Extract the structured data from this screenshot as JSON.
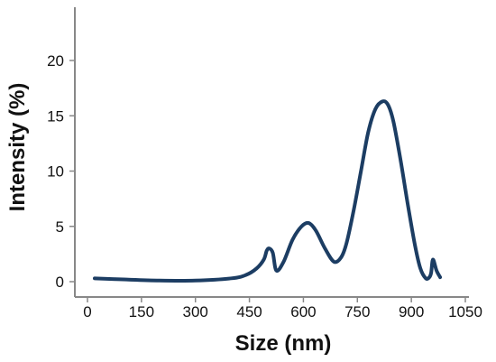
{
  "chart_data": {
    "type": "line",
    "title": "",
    "xlabel": "Size (nm)",
    "ylabel": "Intensity (%)",
    "xlim": [
      0,
      1050
    ],
    "ylim": [
      0,
      25
    ],
    "x_ticks": [
      0,
      150,
      300,
      450,
      600,
      750,
      900,
      1050
    ],
    "x_tick_labels": [
      "0",
      "150",
      "300",
      "450",
      "600",
      "750",
      "900",
      "1050"
    ],
    "y_ticks": [
      0,
      5,
      10,
      15,
      20
    ],
    "y_tick_labels": [
      "0",
      "5",
      "10",
      "15",
      "20"
    ],
    "grid": false,
    "colors": {
      "line": "#1c3d63",
      "axis": "#888888",
      "text": "#111111"
    },
    "series": [
      {
        "x": [
          20,
          100,
          200,
          300,
          400,
          440,
          470,
          490,
          498,
          505,
          515,
          525,
          545,
          570,
          595,
          615,
          635,
          660,
          685,
          705,
          720,
          740,
          760,
          780,
          800,
          820,
          835,
          850,
          870,
          890,
          910,
          925,
          940,
          950,
          955,
          960,
          970,
          980
        ],
        "y": [
          0.3,
          0.2,
          0.1,
          0.1,
          0.3,
          0.6,
          1.2,
          2.0,
          2.8,
          3.0,
          2.6,
          1.0,
          1.8,
          3.8,
          5.0,
          5.3,
          4.6,
          3.0,
          1.8,
          2.2,
          3.5,
          6.5,
          10.0,
          13.5,
          15.6,
          16.3,
          16.0,
          14.5,
          11.0,
          7.0,
          3.3,
          1.2,
          0.3,
          0.4,
          0.8,
          2.0,
          1.0,
          0.4
        ]
      }
    ]
  }
}
